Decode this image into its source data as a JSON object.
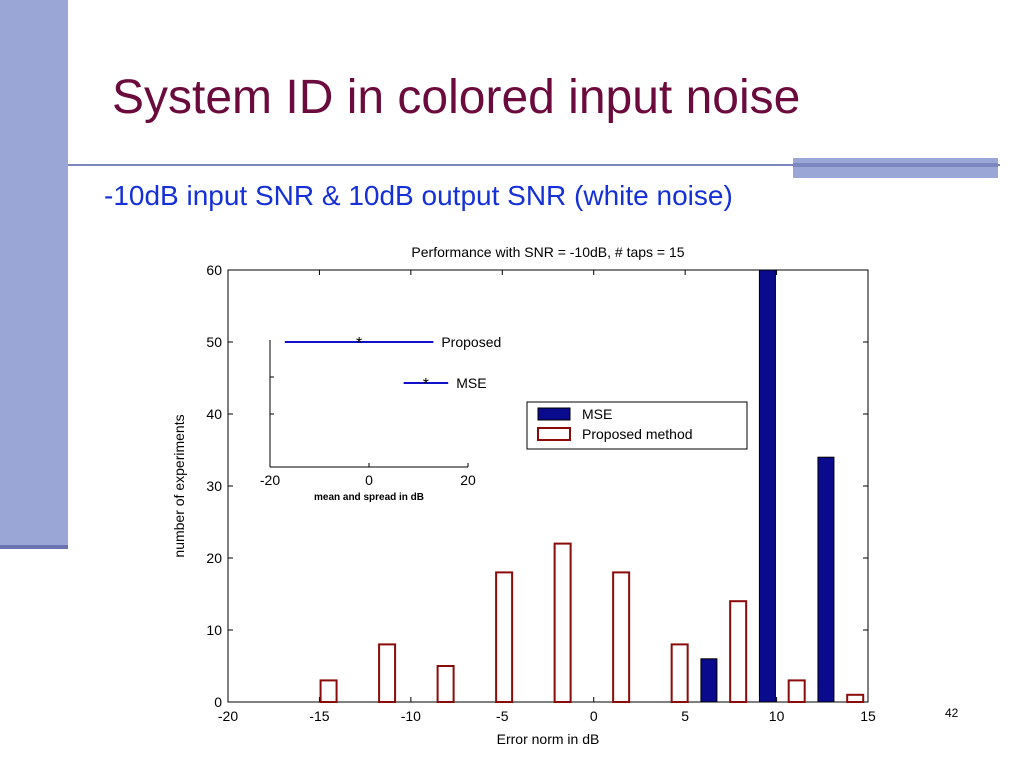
{
  "slide": {
    "title": "System ID in colored input noise",
    "subtitle": "-10dB input SNR & 10dB output SNR (white noise)",
    "page_number": "42"
  },
  "colors": {
    "accent_bar": "#9aa6d6",
    "title": "#6b0a3c",
    "subtitle": "#1530d6",
    "mse_bar": "#0a0a8c",
    "proposed_bar": "#8b0a0a"
  },
  "chart_data": [
    {
      "type": "bar",
      "title": "Performance with SNR = -10dB, # taps = 15",
      "xlabel": "Error norm in dB",
      "ylabel": "number of experiments",
      "xlim": [
        -20,
        15
      ],
      "ylim": [
        0,
        60
      ],
      "xticks": [
        "-20",
        "-15",
        "-10",
        "-5",
        "0",
        "5",
        "10",
        "15"
      ],
      "yticks": [
        "0",
        "10",
        "20",
        "30",
        "40",
        "50",
        "60"
      ],
      "legend_position": "right",
      "series": [
        {
          "name": "MSE",
          "color": "#0a0a8c",
          "points": [
            {
              "x": 6.3,
              "y": 6
            },
            {
              "x": 9.5,
              "y": 60
            },
            {
              "x": 12.7,
              "y": 34
            }
          ]
        },
        {
          "name": "Proposed method",
          "color": "#8b0a0a",
          "points": [
            {
              "x": -14.5,
              "y": 3
            },
            {
              "x": -11.3,
              "y": 8
            },
            {
              "x": -8.1,
              "y": 5
            },
            {
              "x": -4.9,
              "y": 18
            },
            {
              "x": -1.7,
              "y": 22
            },
            {
              "x": 1.5,
              "y": 18
            },
            {
              "x": 4.7,
              "y": 8
            },
            {
              "x": 7.9,
              "y": 14
            },
            {
              "x": 11.1,
              "y": 3
            },
            {
              "x": 14.3,
              "y": 1
            }
          ]
        }
      ]
    },
    {
      "type": "errorbar",
      "xlabel": "mean and spread in dB",
      "xlim": [
        -20,
        20
      ],
      "xticks": [
        "-20",
        "0",
        "20"
      ],
      "series": [
        {
          "name": "Proposed",
          "mean": -2,
          "min": -17,
          "max": 13,
          "color": "#1010c8"
        },
        {
          "name": "MSE",
          "mean": 11.5,
          "min": 7,
          "max": 16,
          "color": "#1010c8"
        }
      ]
    }
  ]
}
